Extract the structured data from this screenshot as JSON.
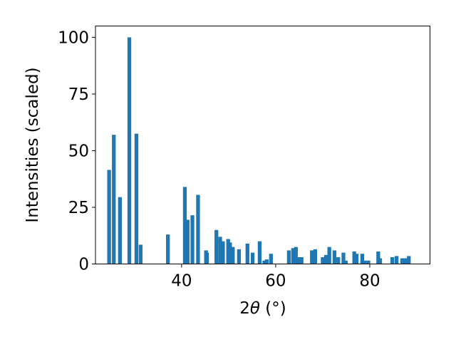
{
  "chart_data": {
    "type": "bar",
    "xlabel_prefix": "2",
    "xlabel_symbol": "θ",
    "xlabel_unit": " (°)",
    "ylabel": "Intensities (scaled)",
    "xlim": [
      21.7,
      92.8
    ],
    "ylim": [
      0,
      105
    ],
    "xticks": [
      40,
      60,
      80
    ],
    "yticks": [
      0,
      25,
      50,
      75,
      100
    ],
    "bar_width": 0.8,
    "bar_color": "#1f77b4",
    "grid": false,
    "x": [
      24.6,
      25.6,
      26.9,
      28.9,
      30.4,
      31.3,
      37.1,
      40.7,
      41.3,
      42.3,
      43.5,
      45.2,
      45.4,
      47.4,
      48.2,
      48.8,
      49.9,
      50.3,
      50.9,
      52.2,
      54.0,
      55.1,
      56.6,
      57.6,
      58.1,
      59.0,
      62.8,
      63.7,
      64.3,
      64.8,
      65.5,
      67.7,
      68.4,
      70.0,
      70.7,
      71.4,
      72.5,
      73.3,
      74.4,
      74.9,
      76.7,
      77.2,
      78.4,
      78.9,
      79.7,
      81.8,
      82.2,
      84.8,
      85.7,
      86.9,
      87.6,
      88.3
    ],
    "values": [
      41.5,
      57,
      29.5,
      100,
      57.5,
      8.5,
      13,
      34,
      19.5,
      21.5,
      30.5,
      6,
      5,
      15,
      12,
      10,
      11,
      9.5,
      7.5,
      6.5,
      9,
      5,
      10,
      1.5,
      2,
      4.5,
      6,
      7,
      7.5,
      3,
      3,
      6,
      6.5,
      3,
      4,
      7.5,
      6,
      3,
      5,
      1.5,
      5.5,
      4.5,
      4.5,
      1.5,
      1.5,
      5.5,
      2.5,
      3,
      3.5,
      2.5,
      2.5,
      3.5
    ]
  }
}
